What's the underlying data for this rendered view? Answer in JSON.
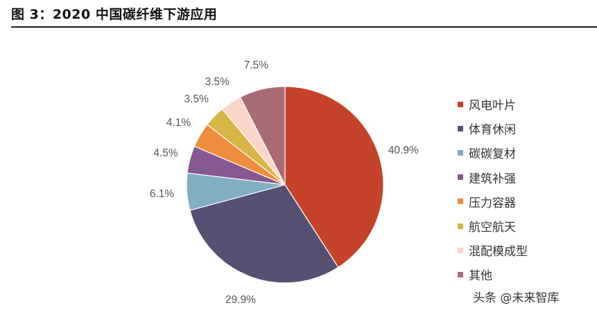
{
  "figure": {
    "title": "图 3：2020 中国碳纤维下游应用",
    "watermark": "头条 @未来智库"
  },
  "chart_data": {
    "type": "pie",
    "title": "",
    "start_angle_deg": 0,
    "direction": "clockwise",
    "legend_position": "right",
    "slices": [
      {
        "name": "风电叶片",
        "value": 40.9,
        "label": "40.9%",
        "color": "#C4432A"
      },
      {
        "name": "体育休闲",
        "value": 29.9,
        "label": "29.9%",
        "color": "#565073"
      },
      {
        "name": "碳碳复材",
        "value": 6.1,
        "label": "6.1%",
        "color": "#83AEC1"
      },
      {
        "name": "建筑补强",
        "value": 4.5,
        "label": "4.5%",
        "color": "#87578F"
      },
      {
        "name": "压力容器",
        "value": 4.1,
        "label": "4.1%",
        "color": "#EF8D3E"
      },
      {
        "name": "航空航天",
        "value": 3.5,
        "label": "3.5%",
        "color": "#D7B645"
      },
      {
        "name": "混配模成型",
        "value": 3.5,
        "label": "3.5%",
        "color": "#FAD6C8"
      },
      {
        "name": "其他",
        "value": 7.5,
        "label": "7.5%",
        "color": "#A86A75"
      }
    ]
  }
}
